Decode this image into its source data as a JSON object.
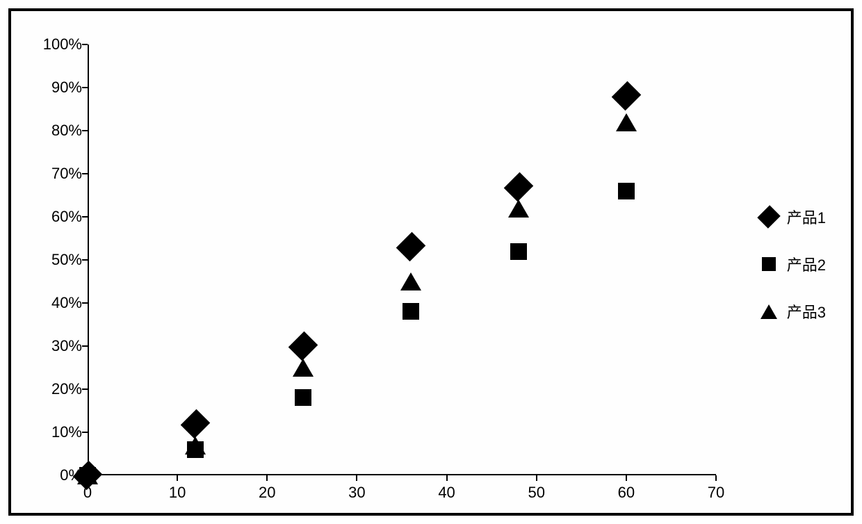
{
  "chart": {
    "type": "scatter",
    "background_color": "#ffffff",
    "border_color": "#000000",
    "border_width": 4,
    "axis_color": "#000000",
    "marker_color": "#000000",
    "label_fontsize": 22,
    "legend_fontsize": 22,
    "xlim": [
      0,
      70
    ],
    "ylim": [
      0,
      100
    ],
    "xtick_step": 10,
    "ytick_step": 10,
    "x_ticks": [
      0,
      10,
      20,
      30,
      40,
      50,
      60,
      70
    ],
    "y_ticks_pct": [
      0,
      10,
      20,
      30,
      40,
      50,
      60,
      70,
      80,
      90,
      100
    ],
    "y_tick_labels": [
      "0%",
      "10%",
      "20%",
      "30%",
      "40%",
      "50%",
      "60%",
      "70%",
      "80%",
      "90%",
      "100%"
    ],
    "x_tick_labels": [
      "0",
      "10",
      "20",
      "30",
      "40",
      "50",
      "60",
      "70"
    ],
    "series": [
      {
        "name": "产品1",
        "marker": "diamond",
        "marker_size": 28,
        "x": [
          0,
          12,
          24,
          36,
          48,
          60
        ],
        "y": [
          0,
          12,
          30,
          53,
          67,
          88
        ]
      },
      {
        "name": "产品2",
        "marker": "square",
        "marker_size": 24,
        "x": [
          0,
          12,
          24,
          36,
          48,
          60
        ],
        "y": [
          0,
          6,
          18,
          38,
          52,
          66
        ]
      },
      {
        "name": "产品3",
        "marker": "triangle",
        "marker_size": 26,
        "x": [
          0,
          12,
          24,
          36,
          48,
          60
        ],
        "y": [
          0,
          7,
          25,
          45,
          62,
          82
        ]
      }
    ],
    "legend_position": "right",
    "legend_items": [
      {
        "label": "产品1",
        "marker": "diamond"
      },
      {
        "label": "产品2",
        "marker": "square"
      },
      {
        "label": "产品3",
        "marker": "triangle"
      }
    ]
  }
}
